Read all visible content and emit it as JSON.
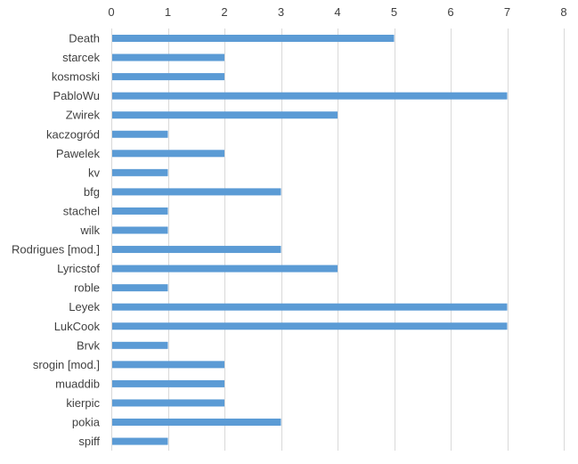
{
  "chart_data": {
    "type": "bar",
    "orientation": "horizontal",
    "categories": [
      "Death",
      "starcek",
      "kosmoski",
      "PabloWu",
      "Zwirek",
      "kaczogród",
      "Pawelek",
      "kv",
      "bfg",
      "stachel",
      "wilk",
      "Rodrigues [mod.]",
      "Lyricstof",
      "roble",
      "Leyek",
      "LukCook",
      "Brvk",
      "srogin [mod.]",
      "muaddib",
      "kierpic",
      "pokia",
      "spiff"
    ],
    "values": [
      5,
      2,
      2,
      7,
      4,
      1,
      2,
      1,
      3,
      1,
      1,
      3,
      4,
      1,
      7,
      7,
      1,
      2,
      2,
      2,
      3,
      1
    ],
    "xlim": [
      0,
      8
    ],
    "x_ticks": [
      "0",
      "1",
      "2",
      "3",
      "4",
      "5",
      "6",
      "7",
      "8"
    ],
    "x_axis_position": "top",
    "grid": true,
    "legend": "none",
    "bar_color": "#5b9bd5",
    "grid_color": "#d9d9d9",
    "text_color": "#404040"
  }
}
